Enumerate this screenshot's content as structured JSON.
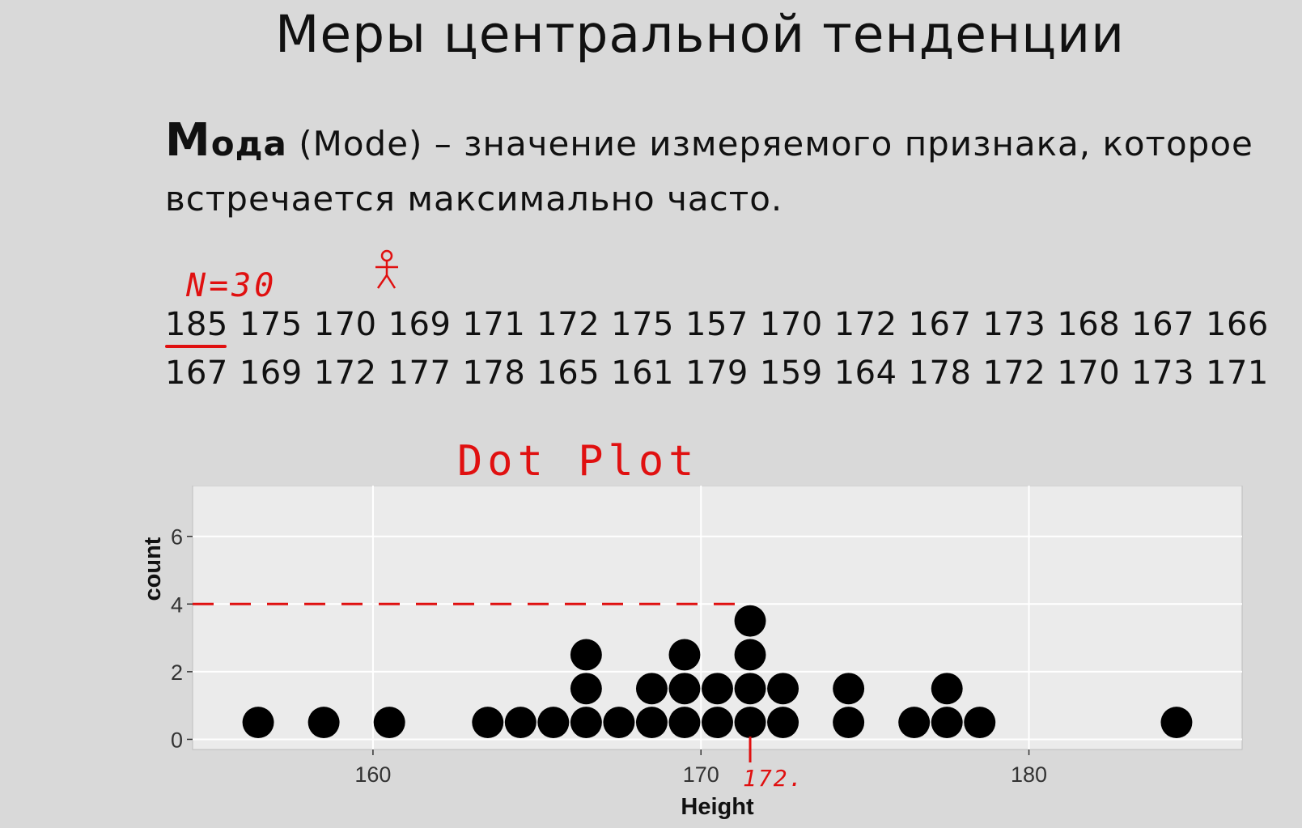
{
  "slide": {
    "title": "Меры центральной тенденции",
    "definition": {
      "term_first_letter": "М",
      "term_rest": "ода",
      "term_english": "(Mode)",
      "text": "– значение измеряемого признака, которое встречается максимально часто."
    },
    "data_row_1": [
      "185",
      "175",
      "170",
      "169",
      "171",
      "172",
      "175",
      "157",
      "170",
      "172",
      "167",
      "173",
      "168",
      "167",
      "166"
    ],
    "data_row_2": [
      "167",
      "169",
      "172",
      "177",
      "178",
      "165",
      "161",
      "179",
      "159",
      "164",
      "178",
      "172",
      "170",
      "173",
      "171"
    ]
  },
  "annotations": {
    "n_label": "N=30",
    "plot_label": "Dot Plot",
    "mode_label": "172.",
    "ink_color": "#e01010"
  },
  "chart_data": {
    "type": "scatter",
    "subtype": "dot plot",
    "xlabel": "Height",
    "ylabel": "count",
    "xlim": [
      154.5,
      186.5
    ],
    "ylim": [
      -0.3,
      7.5
    ],
    "x_ticks": [
      160,
      170,
      180
    ],
    "y_ticks": [
      0,
      2,
      4,
      6
    ],
    "grid": true,
    "panel_color": "#ebebeb",
    "dot_color": "#000000",
    "stacks": [
      {
        "x": 156.5,
        "count": 1
      },
      {
        "x": 158.5,
        "count": 1
      },
      {
        "x": 160.5,
        "count": 1
      },
      {
        "x": 163.5,
        "count": 1
      },
      {
        "x": 164.5,
        "count": 1
      },
      {
        "x": 165.5,
        "count": 1
      },
      {
        "x": 166.5,
        "count": 3
      },
      {
        "x": 167.5,
        "count": 1
      },
      {
        "x": 168.5,
        "count": 2
      },
      {
        "x": 169.5,
        "count": 3
      },
      {
        "x": 170.5,
        "count": 2
      },
      {
        "x": 171.5,
        "count": 4
      },
      {
        "x": 172.5,
        "count": 2
      },
      {
        "x": 174.5,
        "count": 2
      },
      {
        "x": 176.5,
        "count": 1
      },
      {
        "x": 177.5,
        "count": 2
      },
      {
        "x": 178.5,
        "count": 1
      },
      {
        "x": 184.5,
        "count": 1
      }
    ]
  }
}
